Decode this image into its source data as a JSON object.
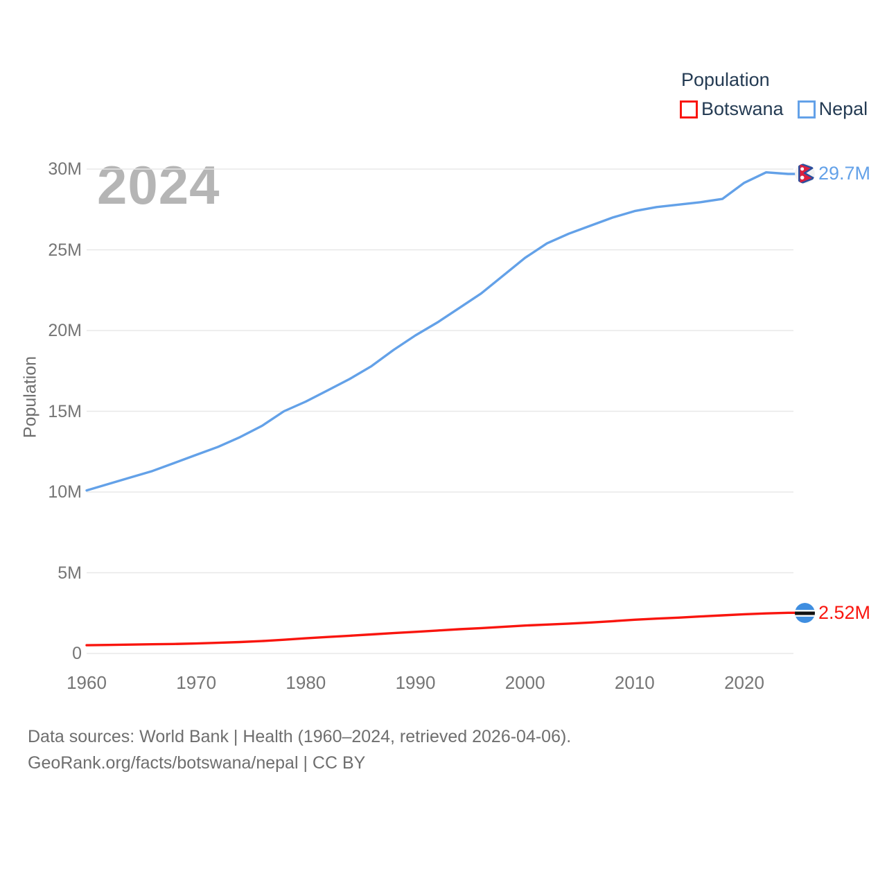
{
  "legend": {
    "title": "Population",
    "items": [
      {
        "label": "Botswana",
        "color": "#f9150e"
      },
      {
        "label": "Nepal",
        "color": "#63a1e8"
      }
    ]
  },
  "watermark": "2024",
  "y_axis": {
    "title": "Population",
    "ticks": [
      {
        "value": 0,
        "label": "0"
      },
      {
        "value": 5,
        "label": "5M"
      },
      {
        "value": 10,
        "label": "10M"
      },
      {
        "value": 15,
        "label": "15M"
      },
      {
        "value": 20,
        "label": "20M"
      },
      {
        "value": 25,
        "label": "25M"
      },
      {
        "value": 30,
        "label": "30M"
      }
    ]
  },
  "x_axis": {
    "ticks": [
      1960,
      1970,
      1980,
      1990,
      2000,
      2010,
      2020
    ]
  },
  "end_labels": [
    {
      "series": "Nepal",
      "text": "29.7M",
      "color": "#63a1e8"
    },
    {
      "series": "Botswana",
      "text": "2.52M",
      "color": "#f9150e"
    }
  ],
  "footer": {
    "line1": "Data sources: World Bank | Health (1960–2024, retrieved 2026-04-06).",
    "line2": "GeoRank.org/facts/botswana/nepal | CC BY"
  },
  "chart_data": {
    "type": "line",
    "title": "Population",
    "xlabel": "",
    "ylabel": "Population",
    "y_unit": "millions",
    "xlim": [
      1960,
      2024
    ],
    "ylim": [
      0,
      30
    ],
    "grid": "horizontal",
    "legend_position": "top-right",
    "x": [
      1960,
      1962,
      1964,
      1966,
      1968,
      1970,
      1972,
      1974,
      1976,
      1978,
      1980,
      1982,
      1984,
      1986,
      1988,
      1990,
      1992,
      1994,
      1996,
      1998,
      2000,
      2002,
      2004,
      2006,
      2008,
      2010,
      2012,
      2014,
      2016,
      2018,
      2020,
      2022,
      2024
    ],
    "series": [
      {
        "name": "Nepal",
        "color": "#63a1e8",
        "end_value_label": "29.7M",
        "values": [
          10.1,
          10.5,
          10.9,
          11.3,
          11.8,
          12.3,
          12.8,
          13.4,
          14.1,
          15.0,
          15.6,
          16.3,
          17.0,
          17.8,
          18.8,
          19.7,
          20.5,
          21.4,
          22.3,
          23.4,
          24.5,
          25.4,
          26.0,
          26.5,
          27.0,
          27.4,
          27.65,
          27.8,
          27.95,
          28.15,
          29.15,
          29.8,
          29.7
        ]
      },
      {
        "name": "Botswana",
        "color": "#f9150e",
        "end_value_label": "2.52M",
        "values": [
          0.51,
          0.53,
          0.55,
          0.57,
          0.59,
          0.62,
          0.66,
          0.71,
          0.77,
          0.85,
          0.94,
          1.02,
          1.1,
          1.18,
          1.26,
          1.34,
          1.42,
          1.5,
          1.57,
          1.65,
          1.73,
          1.79,
          1.85,
          1.92,
          2.0,
          2.09,
          2.16,
          2.22,
          2.29,
          2.36,
          2.43,
          2.48,
          2.52
        ]
      }
    ]
  }
}
